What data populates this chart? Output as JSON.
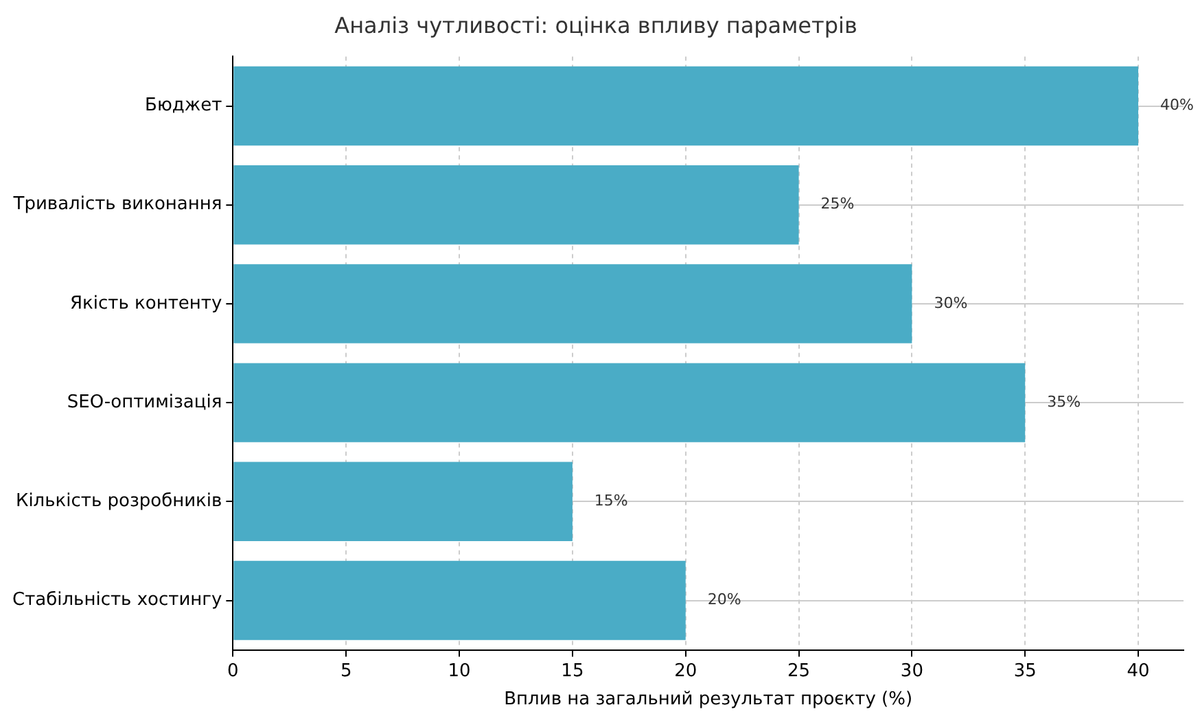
{
  "chart_data": {
    "type": "bar",
    "orientation": "horizontal",
    "title": "Аналіз чутливості: оцінка впливу параметрів",
    "xlabel": "Вплив на загальний результат проєкту (%)",
    "categories": [
      "Бюджет",
      "Тривалість виконання",
      "Якість контенту",
      "SEO-оптимізація",
      "Кількість розробників",
      "Стабільність хостингу"
    ],
    "values": [
      40,
      25,
      30,
      35,
      15,
      20
    ],
    "color": "#4aacc6",
    "value_labels": [
      "40%",
      "25%",
      "30%",
      "35%",
      "15%",
      "20%"
    ],
    "xlim": [
      0,
      42
    ],
    "xticks": [
      0,
      5,
      10,
      15,
      20,
      25,
      30,
      35,
      40
    ],
    "grid": true,
    "legend": false
  }
}
